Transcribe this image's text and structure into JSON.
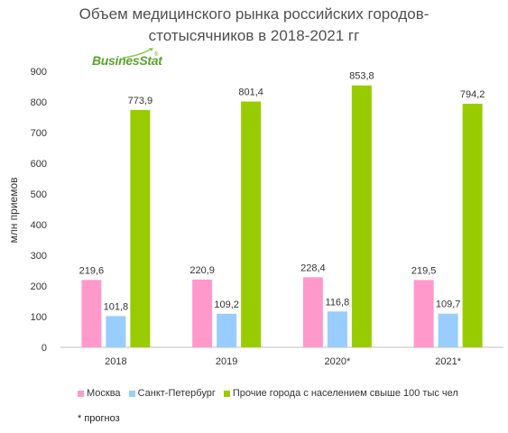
{
  "chart_data": {
    "type": "bar",
    "title_lines": [
      "Объем медицинского рынка российских городов-",
      "стотысячников в 2018-2021 гг"
    ],
    "ylabel": "млн приемов",
    "xlabel": "",
    "ylim": [
      0,
      900
    ],
    "yticks": [
      0,
      100,
      200,
      300,
      400,
      500,
      600,
      700,
      800,
      900
    ],
    "grid": false,
    "legend_position": "bottom",
    "categories": [
      "2018",
      "2019",
      "2020*",
      "2021*"
    ],
    "series": [
      {
        "name": "Москва",
        "color": "#ff99cc",
        "values": [
          219.6,
          220.9,
          228.4,
          219.5
        ],
        "labels": [
          "219,6",
          "220,9",
          "228,4",
          "219,5"
        ]
      },
      {
        "name": "Санкт-Петербург",
        "color": "#99ccff",
        "values": [
          101.8,
          109.2,
          116.8,
          109.7
        ],
        "labels": [
          "101,8",
          "109,2",
          "116,8",
          "109,7"
        ]
      },
      {
        "name": "Прочие города с населением свыше 100 тыс чел",
        "color": "#99cc00",
        "values": [
          773.9,
          801.4,
          853.8,
          794.2
        ],
        "labels": [
          "773,9",
          "801,4",
          "853,8",
          "794,2"
        ]
      }
    ]
  },
  "logo": {
    "text": "BusinesStat",
    "reg": "®"
  },
  "footnote": "* прогноз"
}
